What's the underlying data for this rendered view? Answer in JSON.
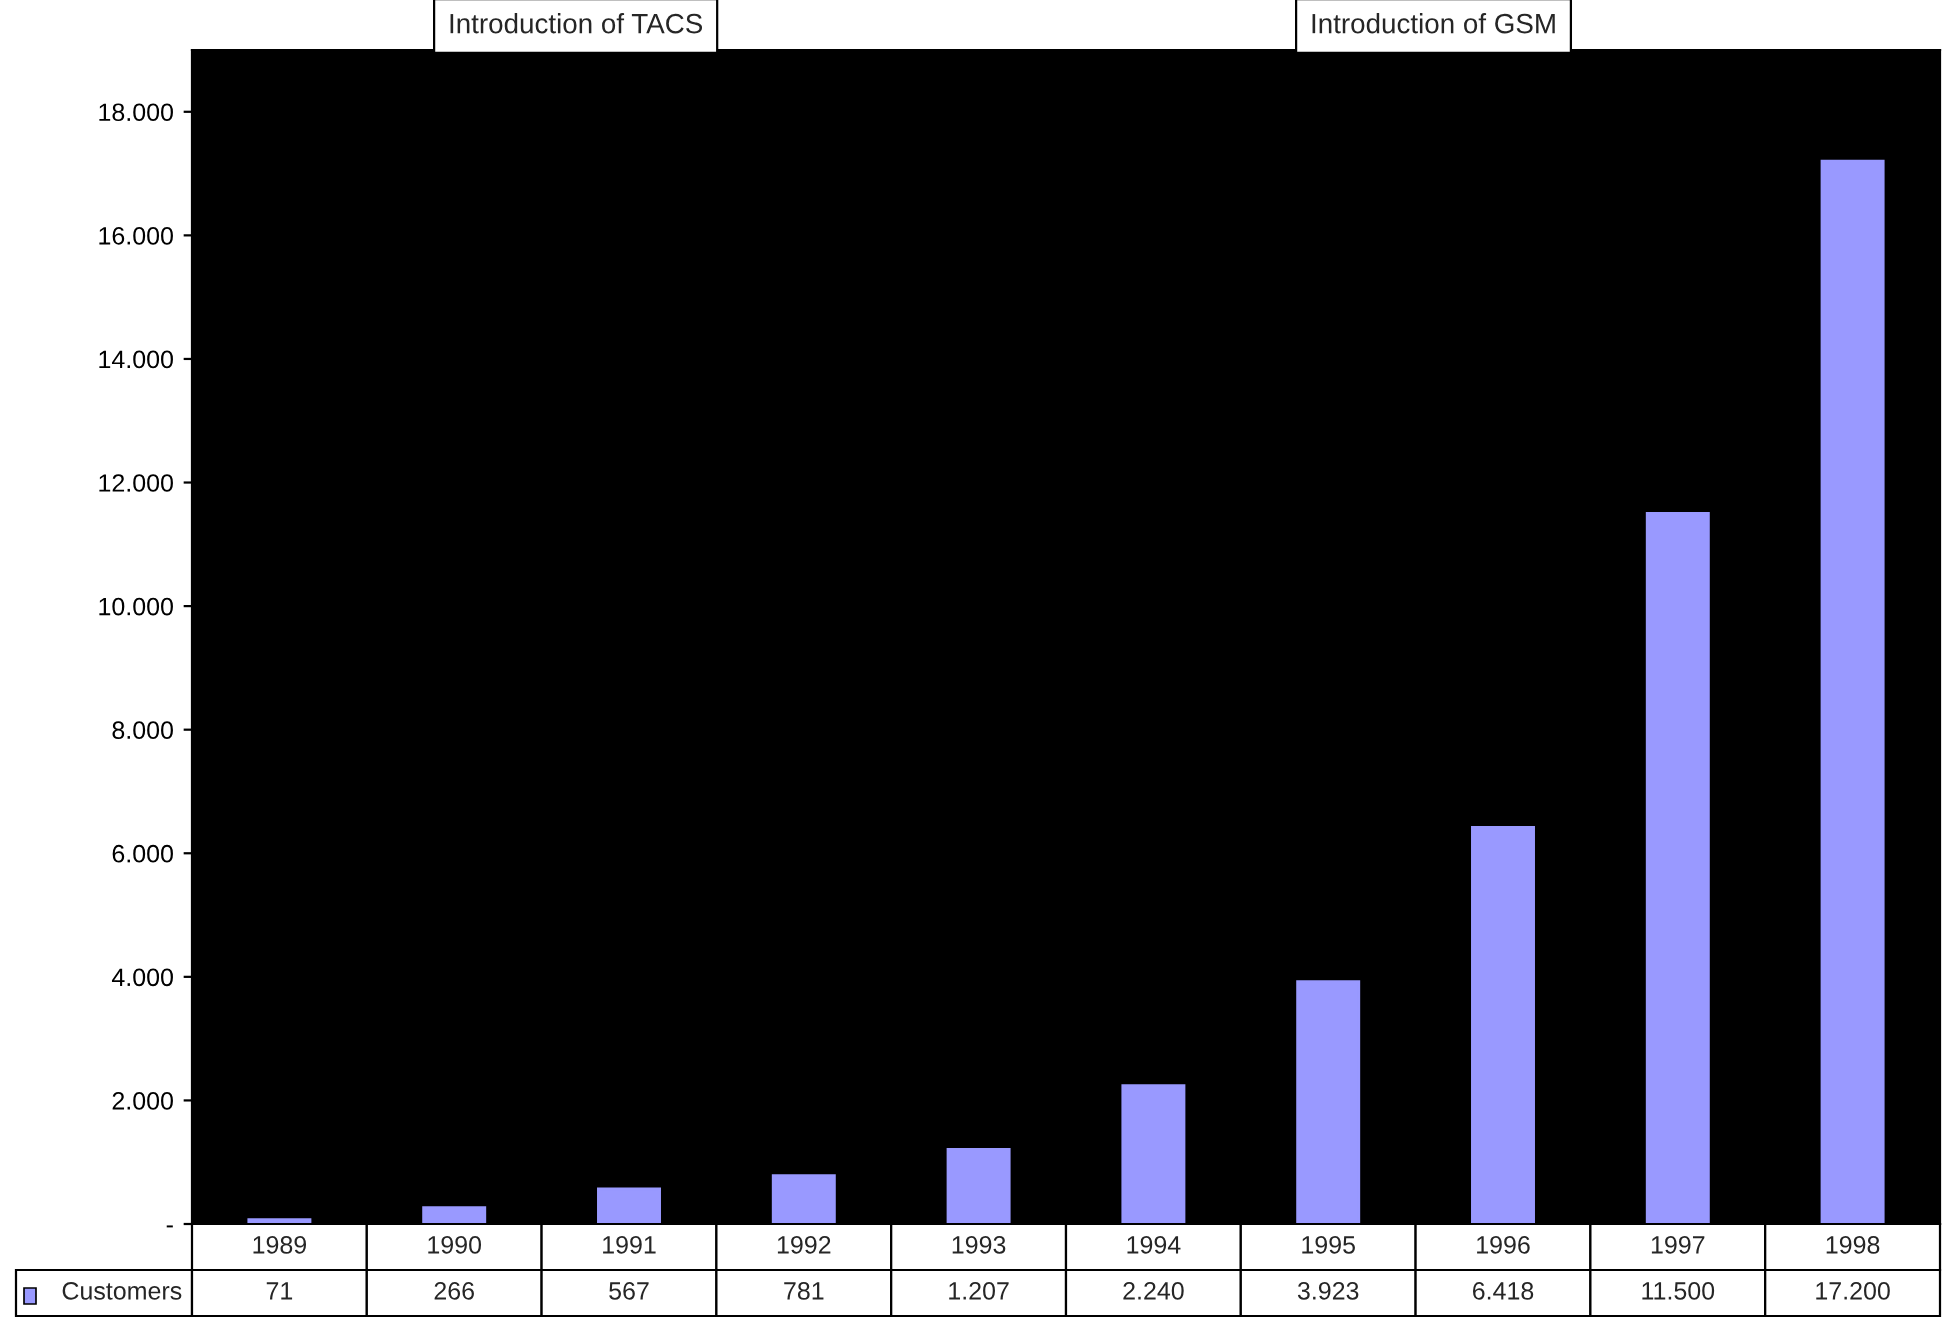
{
  "chart_data": {
    "type": "bar",
    "categories": [
      "1989",
      "1990",
      "1991",
      "1992",
      "1993",
      "1994",
      "1995",
      "1996",
      "1997",
      "1998"
    ],
    "series": [
      {
        "name": "Customers",
        "color": "#9999ff",
        "values": [
          71,
          266,
          567,
          781,
          1207,
          2240,
          3923,
          6418,
          11500,
          17200
        ],
        "value_labels": [
          "71",
          "266",
          "567",
          "781",
          "1.207",
          "2.240",
          "3.923",
          "6.418",
          "11.500",
          "17.200"
        ]
      }
    ],
    "ylim": [
      0,
      19000
    ],
    "yticks": [
      {
        "value": 0,
        "label": "-"
      },
      {
        "value": 2000,
        "label": "2.000"
      },
      {
        "value": 4000,
        "label": "4.000"
      },
      {
        "value": 6000,
        "label": "6.000"
      },
      {
        "value": 8000,
        "label": "8.000"
      },
      {
        "value": 10000,
        "label": "10.000"
      },
      {
        "value": 12000,
        "label": "12.000"
      },
      {
        "value": 14000,
        "label": "14.000"
      },
      {
        "value": 16000,
        "label": "16.000"
      },
      {
        "value": 18000,
        "label": "18.000"
      }
    ],
    "legend": "bottom left",
    "grid": false,
    "annotations": [
      "Introduction of TACS",
      "Introduction of GSM"
    ]
  }
}
